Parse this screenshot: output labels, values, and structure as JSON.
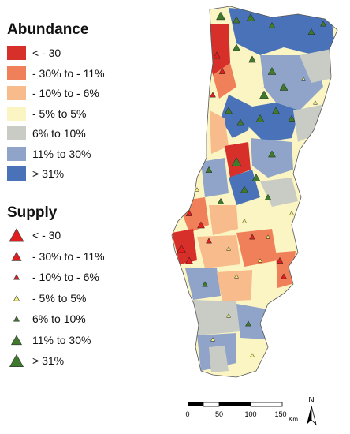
{
  "legend": {
    "abundance": {
      "title": "Abundance",
      "items": [
        {
          "label": "< - 30",
          "color": "#d7302b"
        },
        {
          "label": "- 30% to - 11%",
          "color": "#f0805a"
        },
        {
          "label": "- 10% to - 6%",
          "color": "#f7bb8c"
        },
        {
          "label": "- 5% to 5%",
          "color": "#fbf5c4"
        },
        {
          "label": "6% to 10%",
          "color": "#c9ccc4"
        },
        {
          "label": "11% to 30%",
          "color": "#8fa4c8"
        },
        {
          "label": "> 31%",
          "color": "#4a72b8"
        }
      ]
    },
    "supply": {
      "title": "Supply",
      "items": [
        {
          "label": "< - 30",
          "color": "#e01e1e",
          "size": 18
        },
        {
          "label": "- 30% to - 11%",
          "color": "#e01e1e",
          "size": 12
        },
        {
          "label": "- 10% to - 6%",
          "color": "#e01e1e",
          "size": 7
        },
        {
          "label": "- 5% to 5%",
          "color": "#f2f07a",
          "size": 7
        },
        {
          "label": "6% to 10%",
          "color": "#3f7a2c",
          "size": 7
        },
        {
          "label": "11% to 30%",
          "color": "#3f7a2c",
          "size": 13
        },
        {
          "label": "> 31%",
          "color": "#3f7a2c",
          "size": 17
        }
      ]
    }
  },
  "scale_bar": {
    "ticks": [
      "0",
      "50",
      "100",
      "150"
    ],
    "unit": "Km"
  },
  "north_arrow": {
    "label": "N"
  }
}
